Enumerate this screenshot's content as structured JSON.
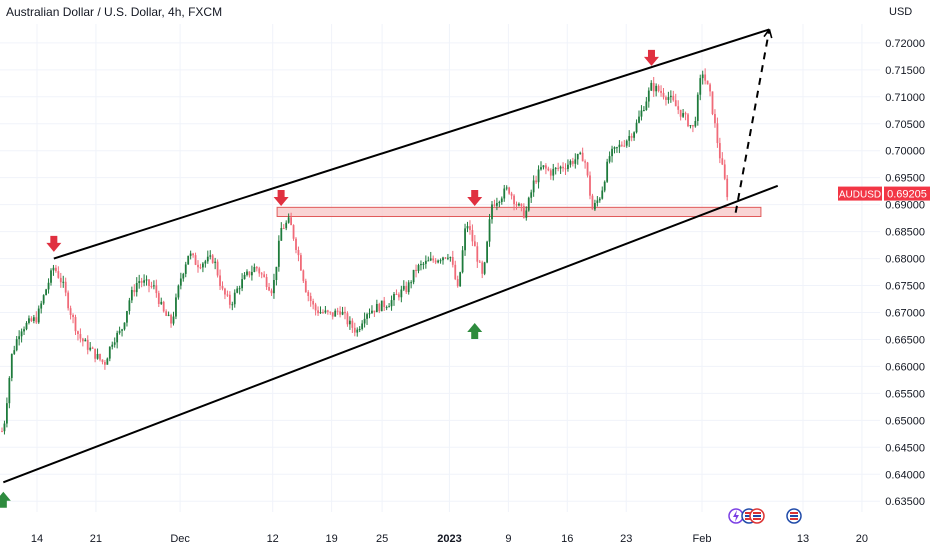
{
  "header": {
    "title": "Australian Dollar / U.S. Dollar, 4h, FXCM"
  },
  "price_axis": {
    "currency": "USD",
    "ticks": [
      "0.72000",
      "0.71500",
      "0.71000",
      "0.70500",
      "0.70000",
      "0.69500",
      "0.69000",
      "0.68500",
      "0.68000",
      "0.67500",
      "0.67000",
      "0.66500",
      "0.66000",
      "0.65500",
      "0.65000",
      "0.64500",
      "0.64000",
      "0.63500"
    ],
    "last_price_symbol": "AUDUSD",
    "last_price": "0.69205"
  },
  "time_axis": {
    "labels": [
      "14",
      "21",
      "Dec",
      "12",
      "19",
      "25",
      "2023",
      "9",
      "16",
      "23",
      "Feb",
      "13",
      "20"
    ]
  },
  "colors": {
    "up": "#1e7b3c",
    "down": "#f06a78",
    "trend_line": "#000000",
    "arrow_down": "#e03040",
    "arrow_up": "#2e8b3e",
    "zone_fill": "#f7c5c5",
    "zone_stroke": "#e05a5a",
    "price_tag": "#f23645"
  },
  "chart_data": {
    "type": "candlestick",
    "title": "Australian Dollar / U.S. Dollar, 4h, FXCM",
    "symbol": "AUDUSD",
    "timeframe": "4h",
    "ylim": [
      0.633,
      0.7235
    ],
    "y_ticks": [
      0.635,
      0.64,
      0.645,
      0.65,
      0.655,
      0.66,
      0.665,
      0.67,
      0.675,
      0.68,
      0.685,
      0.69,
      0.695,
      0.7,
      0.705,
      0.71,
      0.715,
      0.72
    ],
    "last_price": 0.69205,
    "close_path": [
      [
        "2022-11-10",
        0.648
      ],
      [
        "2022-11-11",
        0.662
      ],
      [
        "2022-11-12",
        0.667
      ],
      [
        "2022-11-14",
        0.669
      ],
      [
        "2022-11-15",
        0.674
      ],
      [
        "2022-11-16",
        0.6785
      ],
      [
        "2022-11-17",
        0.6755
      ],
      [
        "2022-11-18",
        0.67
      ],
      [
        "2022-11-19",
        0.6655
      ],
      [
        "2022-11-21",
        0.662
      ],
      [
        "2022-11-22",
        0.6605
      ],
      [
        "2022-11-23",
        0.665
      ],
      [
        "2022-11-24",
        0.6665
      ],
      [
        "2022-11-25",
        0.6725
      ],
      [
        "2022-11-26",
        0.676
      ],
      [
        "2022-11-28",
        0.6745
      ],
      [
        "2022-11-29",
        0.67
      ],
      [
        "2022-11-30",
        0.668
      ],
      [
        "2022-12-01",
        0.676
      ],
      [
        "2022-12-02",
        0.681
      ],
      [
        "2022-12-03",
        0.679
      ],
      [
        "2022-12-05",
        0.68
      ],
      [
        "2022-12-06",
        0.674
      ],
      [
        "2022-12-07",
        0.6715
      ],
      [
        "2022-12-08",
        0.675
      ],
      [
        "2022-12-09",
        0.677
      ],
      [
        "2022-12-10",
        0.6785
      ],
      [
        "2022-12-12",
        0.674
      ],
      [
        "2022-12-13",
        0.6855
      ],
      [
        "2022-12-14",
        0.687
      ],
      [
        "2022-12-15",
        0.681
      ],
      [
        "2022-12-16",
        0.674
      ],
      [
        "2022-12-17",
        0.6705
      ],
      [
        "2022-12-19",
        0.6695
      ],
      [
        "2022-12-20",
        0.6705
      ],
      [
        "2022-12-21",
        0.668
      ],
      [
        "2022-12-22",
        0.6665
      ],
      [
        "2022-12-23",
        0.67
      ],
      [
        "2022-12-26",
        0.672
      ],
      [
        "2022-12-27",
        0.6735
      ],
      [
        "2022-12-28",
        0.6745
      ],
      [
        "2022-12-29",
        0.678
      ],
      [
        "2022-12-30",
        0.679
      ],
      [
        "2023-01-02",
        0.681
      ],
      [
        "2023-01-03",
        0.674
      ],
      [
        "2023-01-04",
        0.687
      ],
      [
        "2023-01-05",
        0.682
      ],
      [
        "2023-01-06",
        0.676
      ],
      [
        "2023-01-07",
        0.69
      ],
      [
        "2023-01-09",
        0.693
      ],
      [
        "2023-01-10",
        0.69
      ],
      [
        "2023-01-11",
        0.688
      ],
      [
        "2023-01-12",
        0.694
      ],
      [
        "2023-01-13",
        0.697
      ],
      [
        "2023-01-14",
        0.696
      ],
      [
        "2023-01-16",
        0.6975
      ],
      [
        "2023-01-17",
        0.6985
      ],
      [
        "2023-01-18",
        0.699
      ],
      [
        "2023-01-19",
        0.689
      ],
      [
        "2023-01-20",
        0.692
      ],
      [
        "2023-01-21",
        0.699
      ],
      [
        "2023-01-23",
        0.702
      ],
      [
        "2023-01-24",
        0.704
      ],
      [
        "2023-01-25",
        0.708
      ],
      [
        "2023-01-26",
        0.712
      ],
      [
        "2023-01-27",
        0.711
      ],
      [
        "2023-01-28",
        0.71
      ],
      [
        "2023-01-30",
        0.706
      ],
      [
        "2023-01-31",
        0.704
      ],
      [
        "2023-02-01",
        0.715
      ],
      [
        "2023-02-02",
        0.71
      ],
      [
        "2023-02-03",
        0.7
      ],
      [
        "2023-02-04",
        0.692
      ]
    ],
    "annotations": {
      "upper_channel_line": [
        [
          "2022-11-16",
          0.68
        ],
        [
          "2023-02-09",
          0.7225
        ]
      ],
      "lower_channel_line": [
        [
          "2022-11-10",
          0.6385
        ],
        [
          "2023-02-10",
          0.6935
        ]
      ],
      "resistance_zone": {
        "from_date": "2022-12-13",
        "to_date": "2023-02-08",
        "low": 0.6878,
        "high": 0.6895
      },
      "projection": [
        [
          "2023-02-05",
          0.6885
        ],
        [
          "2023-02-09",
          0.7225
        ]
      ],
      "down_arrows": [
        [
          "2022-11-16",
          0.6805
        ],
        [
          "2022-12-13",
          0.689
        ],
        [
          "2023-01-05",
          0.689
        ],
        [
          "2023-01-26",
          0.715
        ]
      ],
      "up_arrows": [
        [
          "2022-11-10",
          0.6375
        ],
        [
          "2023-01-05",
          0.6688
        ]
      ]
    }
  }
}
